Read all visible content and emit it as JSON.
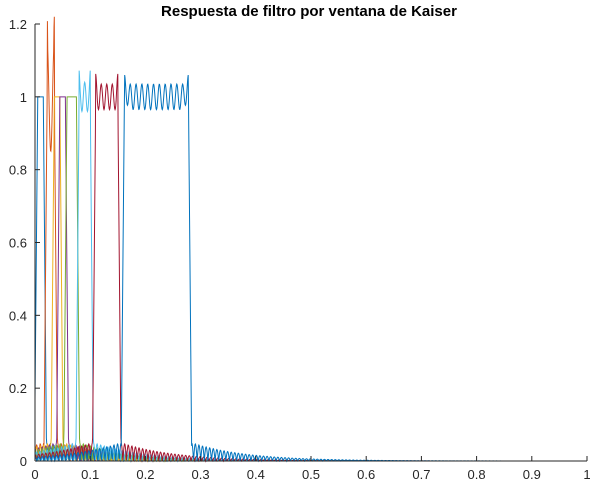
{
  "chart_data": {
    "type": "line",
    "title": "Respuesta de filtro por ventana de Kaiser",
    "xlabel": "",
    "ylabel": "",
    "xlim": [
      0,
      1
    ],
    "ylim": [
      0,
      1.2
    ],
    "xticks": [
      0,
      0.1,
      0.2,
      0.3,
      0.4,
      0.5,
      0.6,
      0.7,
      0.8,
      0.9,
      1
    ],
    "xtick_labels": [
      "0",
      "0.1",
      "0.2",
      "0.3",
      "0.4",
      "0.5",
      "0.6",
      "0.7",
      "0.8",
      "0.9",
      "1"
    ],
    "yticks": [
      0,
      0.2,
      0.4,
      0.6,
      0.8,
      1,
      1.2
    ],
    "ytick_labels": [
      "0",
      "0.2",
      "0.4",
      "0.6",
      "0.8",
      "1",
      "1.2"
    ],
    "grid": false,
    "legend": "none",
    "series": [
      {
        "color": "#0072BD",
        "passband": [
          0.005,
          0.015
        ],
        "ripple": 0.0,
        "width": 1.0
      },
      {
        "color": "#D95319",
        "passband": [
          0.022,
          0.035
        ],
        "ripple": 0.15,
        "width": 1.0
      },
      {
        "color": "#EDB120",
        "passband": [
          0.035,
          0.045
        ],
        "ripple": 0.0,
        "width": 1.0
      },
      {
        "color": "#7E2F8E",
        "passband": [
          0.045,
          0.055
        ],
        "ripple": 0.0,
        "width": 1.0
      },
      {
        "color": "#77AC30",
        "passband": [
          0.058,
          0.075
        ],
        "ripple": 0.0,
        "width": 1.0
      },
      {
        "color": "#4DBEEE",
        "passband": [
          0.08,
          0.1
        ],
        "ripple": 0.04,
        "width": 1.0
      },
      {
        "color": "#A2142F",
        "passband": [
          0.11,
          0.15
        ],
        "ripple": 0.035,
        "width": 1.0
      },
      {
        "color": "#0072BD",
        "passband": [
          0.162,
          0.278
        ],
        "ripple": 0.035,
        "width": 1.0
      }
    ]
  }
}
